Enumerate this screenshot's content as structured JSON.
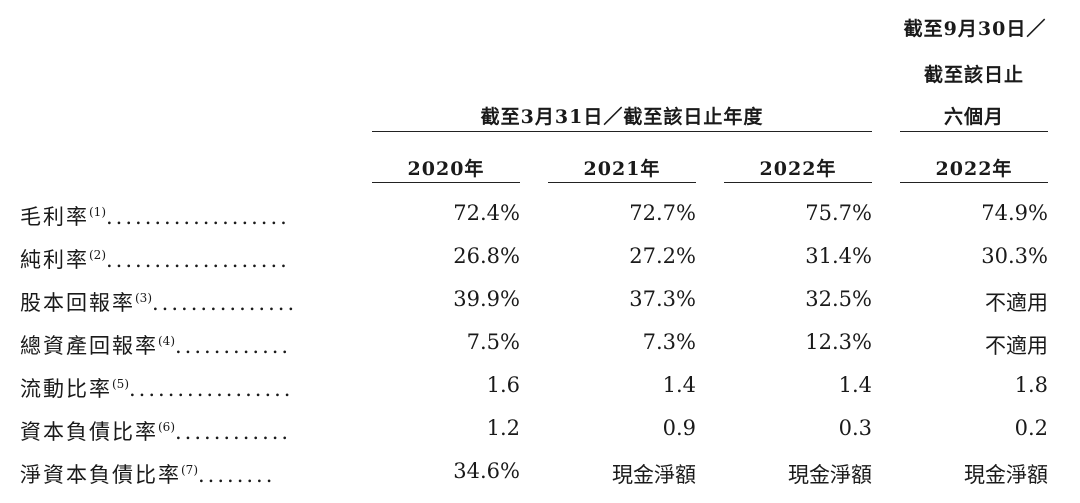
{
  "header": {
    "group_fy": "截至3月31日／截至該日止年度",
    "group_6m_line1": "截至9月30日／",
    "group_6m_line2": "截至該日止",
    "group_6m_line3": "六個月",
    "years": [
      "2020年",
      "2021年",
      "2022年",
      "2022年"
    ]
  },
  "rows": [
    {
      "label": "毛利率",
      "note": "(1)",
      "dots": "...................",
      "values": [
        "72.4%",
        "72.7%",
        "75.7%",
        "74.9%"
      ]
    },
    {
      "label": "純利率",
      "note": "(2)",
      "dots": "...................",
      "values": [
        "26.8%",
        "27.2%",
        "31.4%",
        "30.3%"
      ]
    },
    {
      "label": "股本回報率",
      "note": "(3)",
      "dots": "...............",
      "values": [
        "39.9%",
        "37.3%",
        "32.5%",
        "不適用"
      ]
    },
    {
      "label": "總資產回報率",
      "note": "(4)",
      "dots": "............",
      "values": [
        "7.5%",
        "7.3%",
        "12.3%",
        "不適用"
      ]
    },
    {
      "label": "流動比率",
      "note": "(5)",
      "dots": ".................",
      "values": [
        "1.6",
        "1.4",
        "1.4",
        "1.8"
      ]
    },
    {
      "label": "資本負債比率",
      "note": "(6)",
      "dots": "............",
      "values": [
        "1.2",
        "0.9",
        "0.3",
        "0.2"
      ]
    },
    {
      "label": "淨資本負債比率",
      "note": "(7)",
      "dots": "........",
      "values": [
        "34.6%",
        "現金淨額",
        "現金淨額",
        "現金淨額"
      ]
    }
  ]
}
